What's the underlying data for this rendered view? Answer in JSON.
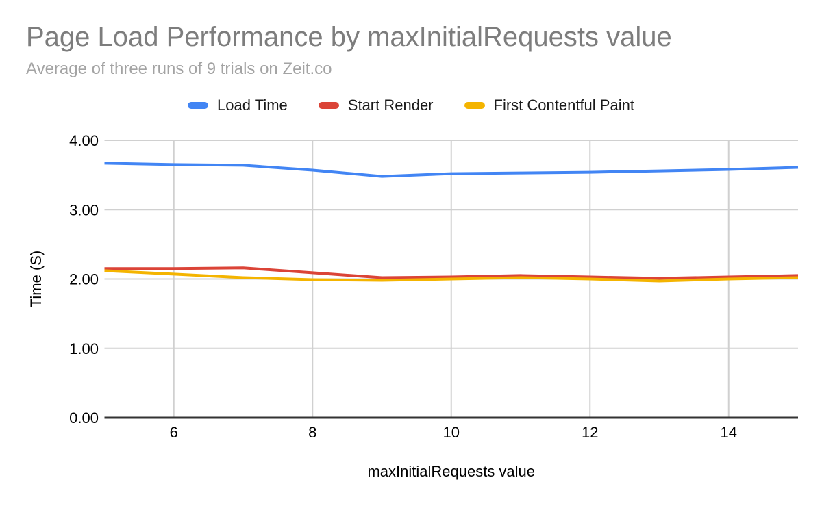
{
  "chart": {
    "title": "Page Load Performance by maxInitialRequests value",
    "subtitle": "Average of three runs of 9 trials on Zeit.co"
  },
  "chart_data": {
    "type": "line",
    "title": "Page Load Performance by maxInitialRequests value",
    "subtitle": "Average of three runs of 9 trials on Zeit.co",
    "xlabel": "maxInitialRequests value",
    "ylabel": "Time (S)",
    "x": [
      5,
      6,
      7,
      8,
      9,
      10,
      11,
      12,
      13,
      14,
      15
    ],
    "series": [
      {
        "name": "Load Time",
        "color": "#4285f4",
        "values": [
          3.67,
          3.65,
          3.64,
          3.57,
          3.48,
          3.52,
          3.53,
          3.54,
          3.56,
          3.58,
          3.61
        ]
      },
      {
        "name": "Start Render",
        "color": "#db4437",
        "values": [
          2.15,
          2.15,
          2.16,
          2.09,
          2.02,
          2.03,
          2.05,
          2.03,
          2.01,
          2.03,
          2.05
        ]
      },
      {
        "name": "First Contentful Paint",
        "color": "#f4b400",
        "values": [
          2.12,
          2.07,
          2.02,
          1.99,
          1.98,
          2.0,
          2.02,
          2.0,
          1.97,
          2.0,
          2.02
        ]
      }
    ],
    "xlim": [
      5,
      15
    ],
    "ylim": [
      0,
      4
    ],
    "x_ticks": [
      6,
      8,
      10,
      12,
      14
    ],
    "y_ticks": [
      0,
      1,
      2,
      3,
      4
    ],
    "y_tick_labels": [
      "0.00",
      "1.00",
      "2.00",
      "3.00",
      "4.00"
    ],
    "grid": true,
    "legend_position": "top"
  },
  "colors": {
    "title_text": "#7d7d7d",
    "subtitle_text": "#a3a3a3",
    "legend_text": "#1a1a1a",
    "tick_text": "#000000",
    "gridline": "#d0d0d0",
    "axis_line": "#333333",
    "background": "#ffffff",
    "series_blue": "#4285f4",
    "series_red": "#db4437",
    "series_yellow": "#f4b400"
  }
}
